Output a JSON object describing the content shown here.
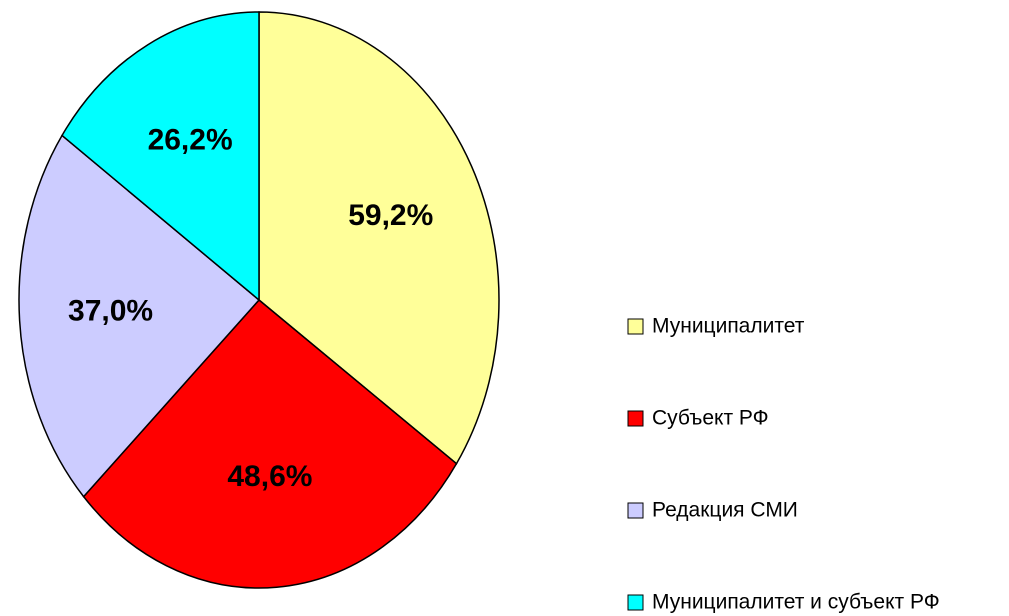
{
  "chart_data": {
    "type": "pie",
    "categories": [
      "Муниципалитет",
      "Субъект РФ",
      "Редакция СМИ",
      "Муниципалитет и субъект РФ"
    ],
    "values": [
      59.2,
      48.6,
      37.0,
      26.2
    ],
    "value_labels": [
      "59,2%",
      "48,6%",
      "37,0%",
      "26,2%"
    ],
    "colors": [
      "#ffff99",
      "#ff0000",
      "#ccccff",
      "#00ffff"
    ],
    "legend": "right"
  }
}
